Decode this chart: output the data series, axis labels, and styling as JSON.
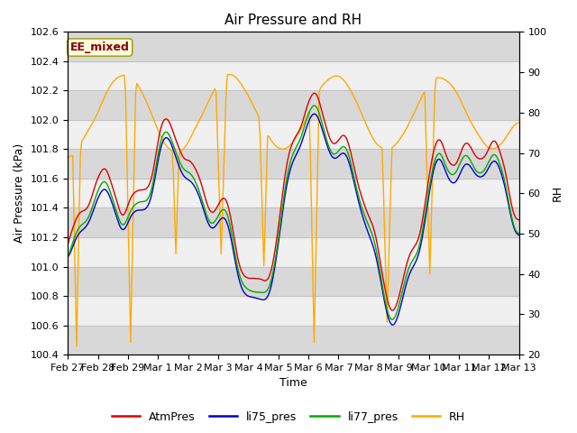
{
  "title": "Air Pressure and RH",
  "xlabel": "Time",
  "ylabel_left": "Air Pressure (kPa)",
  "ylabel_right": "RH",
  "ylim_left": [
    100.4,
    102.6
  ],
  "ylim_right": [
    20,
    100
  ],
  "yticks_left": [
    100.4,
    100.6,
    100.8,
    101.0,
    101.2,
    101.4,
    101.6,
    101.8,
    102.0,
    102.2,
    102.4,
    102.6
  ],
  "yticks_right": [
    20,
    30,
    40,
    50,
    60,
    70,
    80,
    90,
    100
  ],
  "xtick_labels": [
    "Feb 27",
    "Feb 28",
    "Feb 29",
    "Mar 1",
    "Mar 2",
    "Mar 3",
    "Mar 4",
    "Mar 5",
    "Mar 6",
    "Mar 7",
    "Mar 8",
    "Mar 9",
    "Mar 10",
    "Mar 11",
    "Mar 12",
    "Mar 13"
  ],
  "legend_labels": [
    "AtmPres",
    "li75_pres",
    "li77_pres",
    "RH"
  ],
  "line_colors": [
    "#dd0000",
    "#0000cc",
    "#00aa00",
    "#ffaa00"
  ],
  "annotation_text": "EE_mixed",
  "annotation_color": "#880000",
  "annotation_bg": "#ffffdd",
  "annotation_edge": "#999900",
  "plot_bg_light": "#f0f0f0",
  "plot_bg_dark": "#d8d8d8",
  "figwidth": 6.4,
  "figheight": 4.8,
  "dpi": 100
}
